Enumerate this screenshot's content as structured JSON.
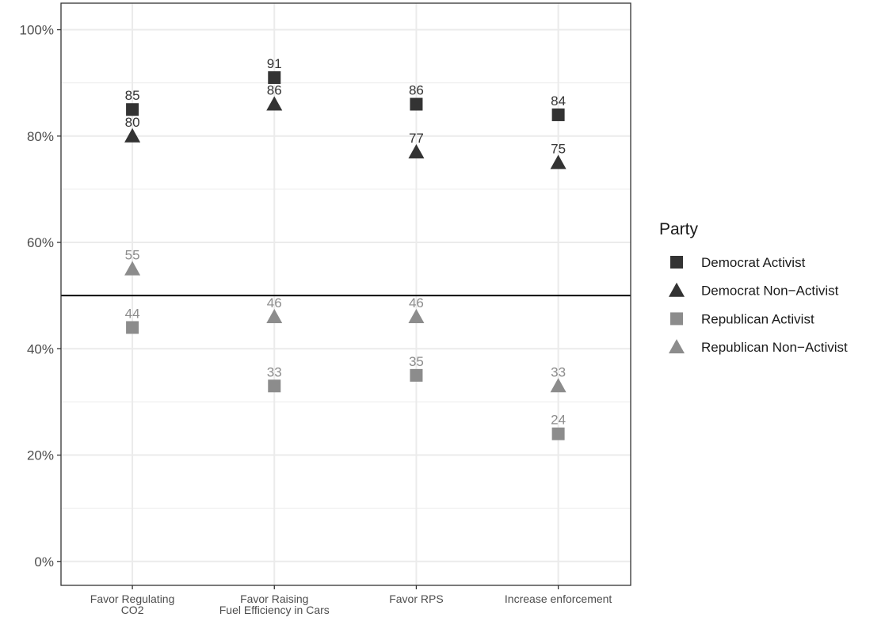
{
  "chart_data": {
    "type": "scatter",
    "categories": [
      "Favor Regulating\nCO2",
      "Favor Raising\nFuel Efficiency in Cars",
      "Favor RPS",
      "Increase enforcement"
    ],
    "y_ticks": [
      "0%",
      "20%",
      "40%",
      "60%",
      "80%",
      "100%"
    ],
    "ylim": [
      -4.5,
      105
    ],
    "reference_line": 50,
    "grid": true,
    "legend": {
      "title": "Party",
      "placement": "right"
    },
    "series": [
      {
        "name": "Democrat Activist",
        "shape": "square",
        "color": "#333333",
        "values": [
          85,
          91,
          86,
          84
        ]
      },
      {
        "name": "Democrat Non−Activist",
        "shape": "triangle",
        "color": "#333333",
        "values": [
          80,
          86,
          77,
          75
        ]
      },
      {
        "name": "Republican Activist",
        "shape": "square",
        "color": "#8c8c8c",
        "values": [
          44,
          33,
          35,
          24
        ]
      },
      {
        "name": "Republican Non−Activist",
        "shape": "triangle",
        "color": "#8c8c8c",
        "values": [
          55,
          46,
          46,
          33
        ]
      }
    ]
  }
}
